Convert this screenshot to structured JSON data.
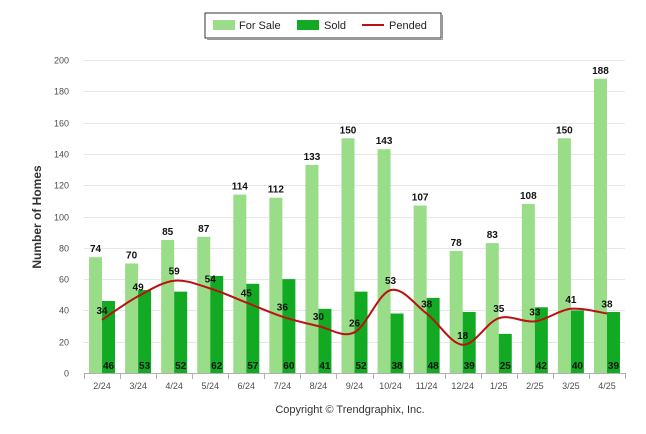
{
  "chart_data": {
    "type": "bar",
    "ylabel": "Number of Homes",
    "ylim": [
      0,
      200
    ],
    "yticks": [
      0,
      20,
      40,
      60,
      80,
      100,
      120,
      140,
      160,
      180,
      200
    ],
    "grid": true,
    "legend_position": "top-center",
    "categories": [
      "2/24",
      "3/24",
      "4/24",
      "5/24",
      "6/24",
      "7/24",
      "8/24",
      "9/24",
      "10/24",
      "11/24",
      "12/24",
      "1/25",
      "2/25",
      "3/25",
      "4/25"
    ],
    "series": [
      {
        "name": "For Sale",
        "kind": "bar",
        "color": "#99dd88",
        "values": [
          74,
          70,
          85,
          87,
          114,
          112,
          133,
          150,
          143,
          107,
          78,
          83,
          108,
          150,
          188
        ]
      },
      {
        "name": "Sold",
        "kind": "bar",
        "color": "#11aa22",
        "values": [
          46,
          53,
          52,
          62,
          57,
          60,
          41,
          52,
          38,
          48,
          39,
          25,
          42,
          40,
          39
        ]
      },
      {
        "name": "Pended",
        "kind": "line",
        "color": "#bb1111",
        "values": [
          34,
          49,
          59,
          54,
          45,
          36,
          30,
          26,
          53,
          38,
          18,
          35,
          33,
          41,
          38
        ]
      }
    ],
    "footer": "Copyright © Trendgraphix, Inc."
  }
}
